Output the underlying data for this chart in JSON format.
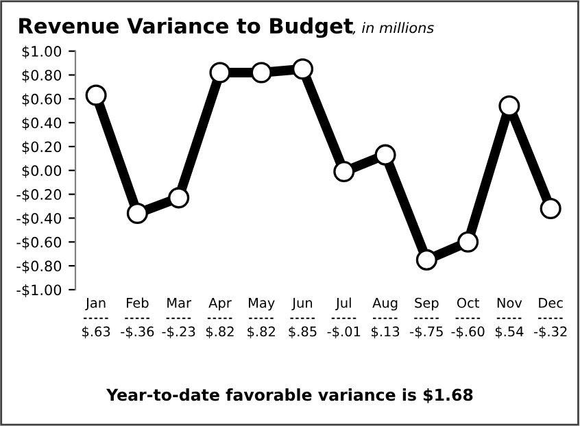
{
  "chart_data": {
    "type": "line",
    "title": "Revenue Variance to Budget",
    "subtitle": ", in millions",
    "categories": [
      "Jan",
      "Feb",
      "Mar",
      "Apr",
      "May",
      "Jun",
      "Jul",
      "Aug",
      "Sep",
      "Oct",
      "Nov",
      "Dec"
    ],
    "series": [
      {
        "color": "#000000",
        "values": [
          0.63,
          -0.36,
          -0.23,
          0.82,
          0.82,
          0.85,
          -0.01,
          0.13,
          -0.75,
          -0.6,
          0.54,
          -0.32
        ],
        "value_labels": [
          "$.63",
          "-$.36",
          "-$.23",
          "$.82",
          "$.82",
          "$.85",
          "-$.01",
          "$.13",
          "-$.75",
          "-$.60",
          "$.54",
          "-$.32"
        ]
      }
    ],
    "marker": "circle",
    "line_style": "solid",
    "grid": false,
    "ylim": [
      -1.0,
      1.0
    ],
    "yticks": [
      {
        "value": 1.0,
        "label": "$1.00"
      },
      {
        "value": 0.8,
        "label": "$0.80"
      },
      {
        "value": 0.6,
        "label": "$0.60"
      },
      {
        "value": 0.4,
        "label": "$0.40"
      },
      {
        "value": 0.2,
        "label": "$0.20"
      },
      {
        "value": 0.0,
        "label": "$0.00"
      },
      {
        "value": -0.2,
        "label": "-$0.20"
      },
      {
        "value": -0.4,
        "label": "-$0.40"
      },
      {
        "value": -0.6,
        "label": "-$0.60"
      },
      {
        "value": -0.8,
        "label": "-$0.80"
      },
      {
        "value": -1.0,
        "label": "-$1.00"
      }
    ],
    "annotations": [
      "Year-to-date favorable variance is $1.68"
    ]
  }
}
